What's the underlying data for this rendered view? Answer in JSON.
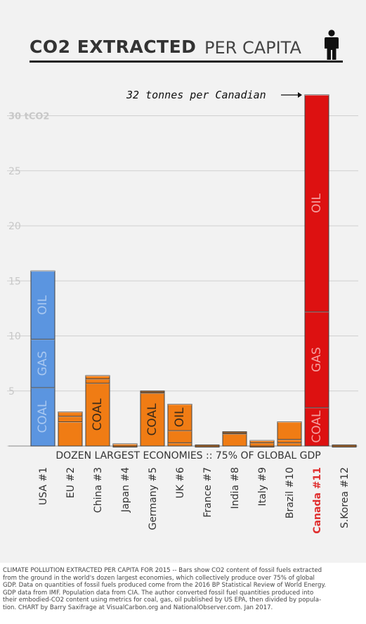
{
  "title": {
    "bold": "CO2 EXTRACTED",
    "light": "PER CAPITA"
  },
  "person_icon": "person-icon",
  "chart_data": {
    "type": "bar",
    "stacked": true,
    "unit_label": "30 tCO2",
    "y_ticks": [
      "",
      "5",
      "10",
      "15",
      "20",
      "25",
      "30 tCO2"
    ],
    "ylim": [
      0,
      31
    ],
    "grid": "horizontal",
    "xlabel": "DOZEN LARGEST ECONOMIES :: 75% OF GLOBAL GDP",
    "annotation": "32 tonnes per Canadian",
    "categories": [
      "USA #1",
      "EU #2",
      "China #3",
      "Japan #4",
      "Germany #5",
      "UK #6",
      "France #7",
      "India #8",
      "Italy #9",
      "Brazil #10",
      "Canada #11",
      "S.Korea #12"
    ],
    "highlight_category": "Canada #11",
    "series": [
      {
        "name": "COAL",
        "values": [
          5.3,
          2.2,
          5.7,
          0.0,
          4.8,
          0.3,
          0.0,
          1.1,
          0.0,
          0.3,
          3.5,
          0.0
        ]
      },
      {
        "name": "GAS",
        "values": [
          4.4,
          0.5,
          0.4,
          0.0,
          0.1,
          1.1,
          0.0,
          0.1,
          0.3,
          0.3,
          8.7,
          0.0
        ]
      },
      {
        "name": "OIL",
        "values": [
          6.2,
          0.4,
          0.3,
          0.2,
          0.1,
          2.4,
          0.1,
          0.1,
          0.2,
          1.6,
          19.7,
          0.1
        ]
      }
    ],
    "bar_labels": [
      {
        "category": "USA #1",
        "series": "COAL",
        "text": "COAL"
      },
      {
        "category": "USA #1",
        "series": "GAS",
        "text": "GAS"
      },
      {
        "category": "USA #1",
        "series": "OIL",
        "text": "OIL"
      },
      {
        "category": "China #3",
        "series": "COAL",
        "text": "COAL"
      },
      {
        "category": "Germany #5",
        "series": "COAL",
        "text": "COAL"
      },
      {
        "category": "UK #6",
        "series": "OIL",
        "text": "OIL"
      },
      {
        "category": "Canada #11",
        "series": "COAL",
        "text": "COAL"
      },
      {
        "category": "Canada #11",
        "series": "GAS",
        "text": "GAS"
      },
      {
        "category": "Canada #11",
        "series": "OIL",
        "text": "OIL"
      }
    ],
    "colors": {
      "usa": "#5b95e0",
      "default": "#f07c14",
      "highlight": "#dd1111",
      "highlight_label": "#e03030",
      "segment_label_usa": "#a9c8f0",
      "segment_label_default": "#3a2a1a",
      "segment_label_highlight": "#f4a0a0"
    }
  },
  "footer": {
    "lines": [
      "CLIMATE POLLUTION EXTRACTED PER CAPITA FOR 2015 -- Bars show CO2 content of fossil fuels extracted",
      "from the ground in the world's dozen largest economies, which collectively produce over 75% of global",
      "GDP. Data on quantities of fossil fuels produced come from the 2016 BP Statistical Review of World Energy.",
      "GDP data from IMF. Population data from CIA. The author converted fossil fuel quantities produced into",
      "their embodied-CO2 content using metrics for coal, gas, oil published by US EPA, then divided by popula-",
      "tion. CHART by Barry Saxifrage at VisualCarbon.org and NationalObserver.com. Jan 2017."
    ]
  }
}
